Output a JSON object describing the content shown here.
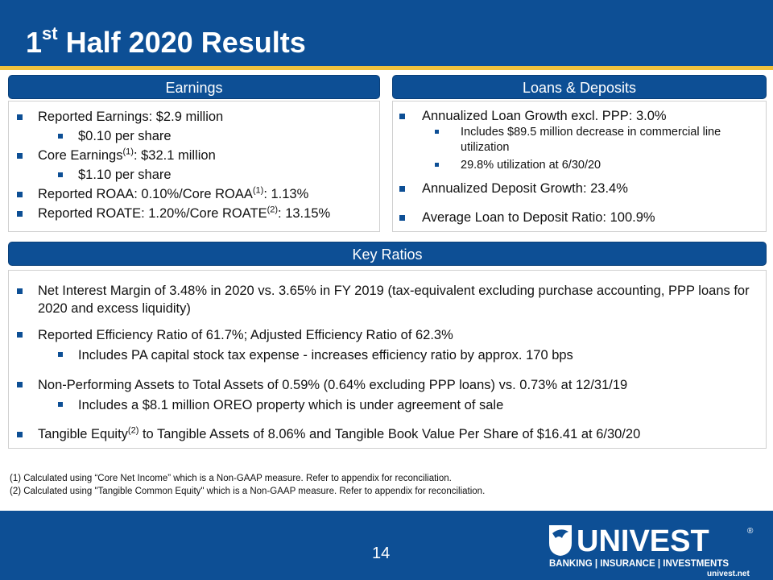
{
  "title": {
    "prefix": "1",
    "sup": "st",
    "rest": " Half 2020 Results"
  },
  "earnings": {
    "header": "Earnings",
    "items": [
      {
        "pre": "Reported Earnings: $2.9 million",
        "sup": "",
        "post": ""
      },
      {
        "pre": "$0.10 per share",
        "sup": "",
        "post": ""
      },
      {
        "pre": "Core Earnings",
        "sup": "(1)",
        "post": ": $32.1 million"
      },
      {
        "pre": "$1.10 per share",
        "sup": "",
        "post": ""
      },
      {
        "pre": "Reported ROAA: 0.10%/Core ROAA",
        "sup": "(1)",
        "post": ": 1.13%"
      },
      {
        "pre": "Reported ROATE: 1.20%/Core ROATE",
        "sup": "(2)",
        "post": ": 13.15%"
      }
    ]
  },
  "loans": {
    "header": "Loans & Deposits",
    "items": [
      "Annualized Loan Growth excl. PPP: 3.0%",
      "Includes $89.5 million decrease in commercial line utilization",
      "29.8% utilization at 6/30/20",
      "Annualized Deposit Growth: 23.4%",
      "Average Loan to Deposit Ratio: 100.9%"
    ]
  },
  "key_ratios": {
    "header": "Key Ratios",
    "items": [
      {
        "pre": "Net Interest Margin of 3.48% in 2020 vs. 3.65% in FY 2019 (tax-equivalent excluding purchase accounting, PPP loans for 2020 and excess liquidity)",
        "sup": "",
        "post": ""
      },
      {
        "pre": "Reported Efficiency Ratio of 61.7%;  Adjusted Efficiency Ratio of 62.3%",
        "sup": "",
        "post": ""
      },
      {
        "pre": "Includes PA capital stock tax expense - increases efficiency ratio by approx. 170 bps",
        "sup": "",
        "post": ""
      },
      {
        "pre": "Non-Performing Assets to Total Assets of 0.59% (0.64% excluding PPP loans) vs. 0.73% at 12/31/19",
        "sup": "",
        "post": ""
      },
      {
        "pre": "Includes a $8.1 million OREO property which is under agreement of sale",
        "sup": "",
        "post": ""
      },
      {
        "pre": "Tangible Equity",
        "sup": "(2)",
        "post": " to Tangible Assets of 8.06% and Tangible Book Value Per Share of $16.41 at 6/30/20"
      }
    ]
  },
  "footnotes": [
    "(1) Calculated using “Core Net Income” which is a Non-GAAP measure.  Refer to appendix for reconciliation.",
    "(2) Calculated using \"Tangible Common Equity\" which is a Non-GAAP measure.  Refer to appendix for reconciliation."
  ],
  "page_number": "14",
  "logo": {
    "name": "UNIVEST",
    "registered": "®",
    "tagline": "BANKING | INSURANCE | INVESTMENTS",
    "url": "univest.net"
  },
  "colors": {
    "primary": "#0d4f95",
    "accent": "#f0c23c",
    "text": "#111111"
  }
}
